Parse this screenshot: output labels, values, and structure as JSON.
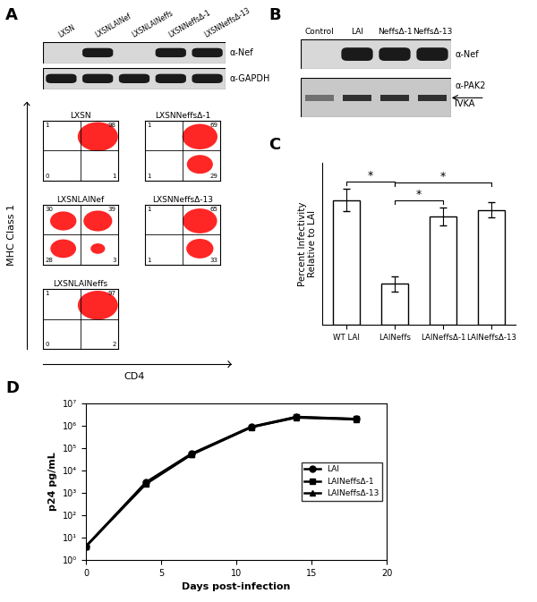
{
  "panel_labels": [
    "A",
    "B",
    "C",
    "D"
  ],
  "blot_a": {
    "lanes": [
      "LXSN",
      "LXSNLAINef",
      "LXSNLAINeffs",
      "LXSNNeffsΔ-1",
      "LXSNNeffsΔ-13"
    ],
    "rows": [
      "α-Nef",
      "α-GAPDH"
    ],
    "bands": [
      [
        0,
        1,
        0,
        1,
        1
      ],
      [
        1,
        1,
        1,
        1,
        1
      ]
    ]
  },
  "flow_a": {
    "x_label": "CD4",
    "y_label": "MHC Class 1",
    "color": "#ff0000",
    "plots": [
      {
        "name": "LXSN",
        "top_left": 1,
        "top_right": 98,
        "bottom_left": 0,
        "bottom_right": 1
      },
      {
        "name": "LXSNLAINef",
        "top_left": 30,
        "top_right": 39,
        "bottom_left": 28,
        "bottom_right": 3
      },
      {
        "name": "LXSNLAINeffs",
        "top_left": 1,
        "top_right": 97,
        "bottom_left": 0,
        "bottom_right": 2
      },
      {
        "name": "LXSNNeffsΔ-1",
        "top_left": 1,
        "top_right": 69,
        "bottom_left": 1,
        "bottom_right": 29
      },
      {
        "name": "LXSNNeffsΔ-13",
        "top_left": 1,
        "top_right": 65,
        "bottom_left": 1,
        "bottom_right": 33
      }
    ]
  },
  "blot_b": {
    "lanes": [
      "Control",
      "LAI",
      "NeffsΔ-1",
      "NeffsΔ-13"
    ],
    "rows": [
      "α-Nef",
      "α-PAK2"
    ],
    "arrow_label": "IVKA",
    "bands": [
      [
        0,
        1,
        1,
        1
      ],
      [
        1,
        1,
        1,
        1
      ]
    ]
  },
  "chart_data": [
    {
      "type": "bar",
      "y_label": "Percent Infectivity\nRelative to LAI",
      "categories": [
        "WT LAI",
        "LAINeffs",
        "LAINeffsΔ-1",
        "LAINeffsΔ-13"
      ],
      "values": [
        100,
        33,
        87,
        92
      ],
      "errors": [
        9,
        6,
        7,
        6
      ],
      "color": "#ffffff",
      "ylim": [
        0,
        130
      ],
      "tick_labels": "x",
      "significance": [
        {
          "pair": [
            0,
            1
          ],
          "label": "*"
        },
        {
          "pair": [
            1,
            2
          ],
          "label": "*"
        },
        {
          "pair": [
            1,
            3
          ],
          "label": "*"
        }
      ]
    },
    {
      "type": "line",
      "x_label": "Days post-infection",
      "y_label": "p24 pg/mL",
      "log": "y",
      "x": [
        0,
        4,
        7,
        11,
        14,
        18
      ],
      "series": [
        {
          "name": "LAI",
          "color": "#000000",
          "marker": "circle",
          "values": [
            4,
            3000,
            55000,
            900000,
            2500000,
            2000000
          ]
        },
        {
          "name": "LAINeffsΔ-1",
          "color": "#000000",
          "marker": "square",
          "values": [
            4,
            2500,
            50000,
            850000,
            2400000,
            2000000
          ]
        },
        {
          "name": "LAINeffsΔ-13",
          "color": "#000000",
          "marker": "triangle",
          "values": [
            4,
            2800,
            52000,
            870000,
            2300000,
            1900000
          ]
        }
      ],
      "xlim": [
        0,
        20
      ],
      "xticks": [
        0,
        5,
        10,
        15,
        20
      ],
      "ylim": [
        1,
        10000000
      ],
      "yticks": [
        {
          "value": 1,
          "label": "10⁰"
        },
        {
          "value": 10,
          "label": "10¹"
        },
        {
          "value": 100,
          "label": "10²"
        },
        {
          "value": 1000,
          "label": "10³"
        },
        {
          "value": 10000,
          "label": "10⁴"
        },
        {
          "value": 100000,
          "label": "10⁵"
        },
        {
          "value": 1000000,
          "label": "10⁶"
        },
        {
          "value": 10000000,
          "label": "10⁷"
        }
      ],
      "legend": "center right"
    }
  ]
}
